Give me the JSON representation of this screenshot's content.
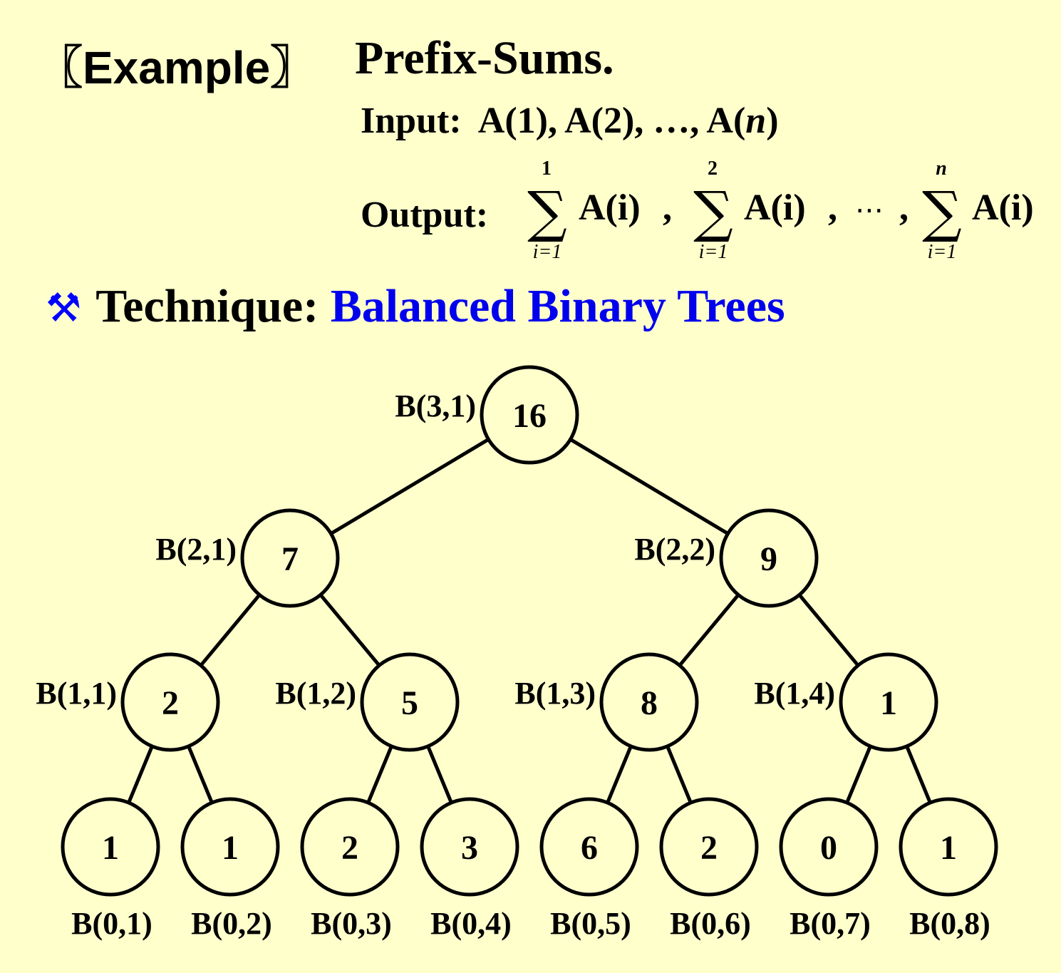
{
  "header": {
    "example_label": "〖Example〗",
    "topic": "Prefix-Sums."
  },
  "input": {
    "label": "Input:",
    "items_prefix": "A(1), A(2), …, A(",
    "items_var": "n",
    "items_suffix": ")"
  },
  "output": {
    "label": "Output:",
    "sums": [
      {
        "upper": "1",
        "lower": "i=1",
        "term": "A(i)"
      },
      {
        "upper": "2",
        "lower": "i=1",
        "term": "A(i)"
      },
      {
        "upper": "n",
        "lower": "i=1",
        "term": "A(i)"
      }
    ],
    "separator": ",",
    "ellipsis": "⋯"
  },
  "technique": {
    "icon": "tools-icon",
    "label": "Technique:",
    "value": "Balanced Binary Trees"
  },
  "tree": {
    "colors": {
      "node_stroke": "#000000",
      "edge": "#000000"
    },
    "levels": [
      {
        "nodes": [
          {
            "label": "B(3,1)",
            "value": "16"
          }
        ]
      },
      {
        "nodes": [
          {
            "label": "B(2,1)",
            "value": "7"
          },
          {
            "label": "B(2,2)",
            "value": "9"
          }
        ]
      },
      {
        "nodes": [
          {
            "label": "B(1,1)",
            "value": "2"
          },
          {
            "label": "B(1,2)",
            "value": "5"
          },
          {
            "label": "B(1,3)",
            "value": "8"
          },
          {
            "label": "B(1,4)",
            "value": "1"
          }
        ]
      },
      {
        "nodes": [
          {
            "label": "B(0,1)",
            "value": "1"
          },
          {
            "label": "B(0,2)",
            "value": "1"
          },
          {
            "label": "B(0,3)",
            "value": "2"
          },
          {
            "label": "B(0,4)",
            "value": "3"
          },
          {
            "label": "B(0,5)",
            "value": "6"
          },
          {
            "label": "B(0,6)",
            "value": "2"
          },
          {
            "label": "B(0,7)",
            "value": "0"
          },
          {
            "label": "B(0,8)",
            "value": "1"
          }
        ]
      }
    ]
  }
}
